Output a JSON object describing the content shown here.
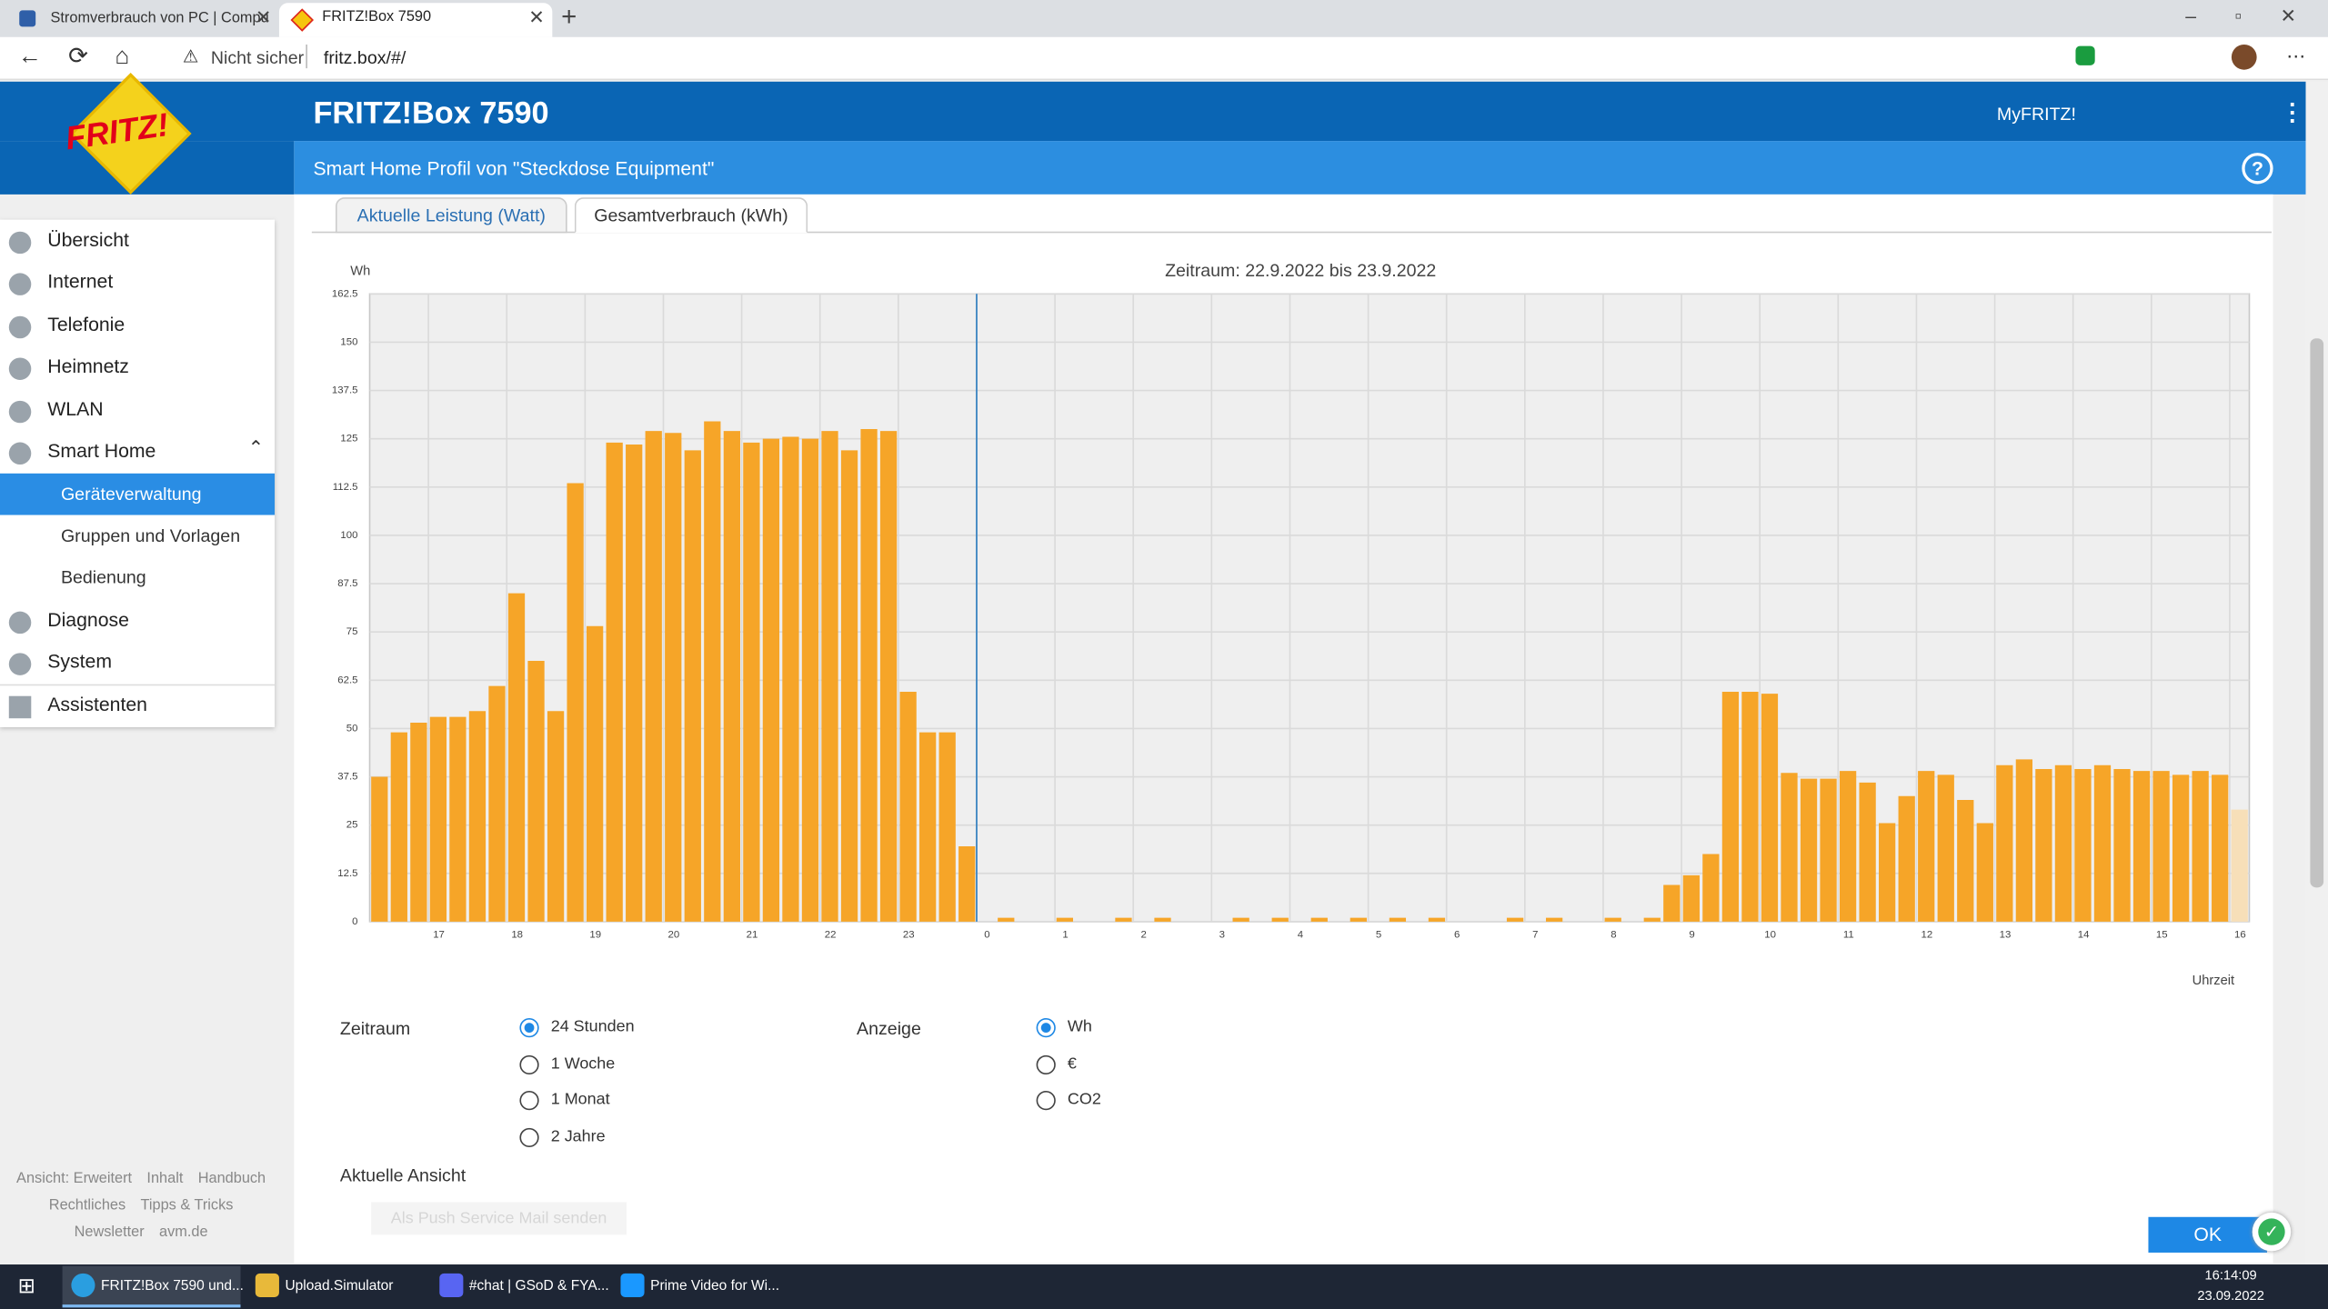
{
  "browser": {
    "tabs": [
      "Stromverbrauch von PC | Compu",
      "FRITZ!Box 7590"
    ],
    "security": "Nicht sicher",
    "url": "fritz.box/#/"
  },
  "header": {
    "logo": "FRITZ!",
    "title": "FRITZ!Box 7590",
    "myfritz": "MyFRITZ!",
    "subtitle": "Smart Home Profil von \"Steckdose Equipment\"",
    "help": "?"
  },
  "nav": {
    "items": [
      "Übersicht",
      "Internet",
      "Telefonie",
      "Heimnetz",
      "WLAN",
      "Smart Home"
    ],
    "subitems": [
      "Geräteverwaltung",
      "Gruppen und Vorlagen",
      "Bedienung"
    ],
    "selected_subitem": 0,
    "more": [
      "Diagnose",
      "System"
    ],
    "assistant": "Assistenten"
  },
  "footer_links": [
    [
      "Ansicht: Erweitert",
      "Inhalt",
      "Handbuch"
    ],
    [
      "Rechtliches",
      "Tipps & Tricks"
    ],
    [
      "Newsletter",
      "avm.de"
    ]
  ],
  "tabs": [
    "Aktuelle Leistung (Watt)",
    "Gesamtverbrauch (kWh)"
  ],
  "active_tab": 1,
  "chart_data": {
    "type": "bar",
    "title": "Zeitraum: 22.9.2022 bis 23.9.2022",
    "y_unit": "Wh",
    "x_label": "Uhrzeit",
    "x": [
      16.25,
      16.5,
      16.75,
      17,
      17.25,
      17.5,
      17.75,
      18,
      18.25,
      18.5,
      18.75,
      19,
      19.25,
      19.5,
      19.75,
      20,
      20.25,
      20.5,
      20.75,
      21,
      21.25,
      21.5,
      21.75,
      22,
      22.25,
      22.5,
      22.75,
      23,
      23.25,
      23.5,
      23.75,
      24,
      24.25,
      24.5,
      24.75,
      25,
      25.25,
      25.5,
      25.75,
      26,
      26.25,
      26.5,
      26.75,
      27,
      27.25,
      27.5,
      27.75,
      28,
      28.25,
      28.5,
      28.75,
      29,
      29.25,
      29.5,
      29.75,
      30,
      30.25,
      30.5,
      30.75,
      31,
      31.25,
      31.5,
      31.75,
      32,
      32.25,
      32.5,
      32.75,
      33,
      33.25,
      33.5,
      33.75,
      34,
      34.25,
      34.5,
      34.75,
      35,
      35.25,
      35.5,
      35.75,
      36,
      36.25,
      36.5,
      36.75,
      37,
      37.25,
      37.5,
      37.75,
      38,
      38.25,
      38.5,
      38.75,
      39,
      39.25,
      39.5,
      39.75,
      40
    ],
    "values": [
      37.5,
      49,
      51.5,
      53,
      53,
      54.5,
      61,
      85,
      67.5,
      54.5,
      113.5,
      76.5,
      124,
      123.5,
      127,
      126.5,
      122,
      129.5,
      127,
      124,
      125,
      125.5,
      125,
      127,
      122,
      127.5,
      127,
      59.5,
      49,
      49,
      19.5,
      0,
      1,
      0,
      0,
      1,
      0,
      0,
      1,
      0,
      1,
      0,
      0,
      0,
      1,
      0,
      1,
      0,
      1,
      0,
      1,
      0,
      1,
      0,
      1,
      0,
      0,
      0,
      1,
      0,
      1,
      0,
      0,
      1,
      0,
      1,
      9.5,
      12,
      17.5,
      59.5,
      59.5,
      59,
      38.5,
      37,
      37,
      39,
      36,
      25.5,
      32.5,
      39,
      38,
      31.5,
      25.5,
      40.5,
      42,
      39.5,
      40.5,
      39.5,
      40.5,
      39.5,
      39,
      39,
      38,
      39,
      38,
      29
    ],
    "color": "#f6a528",
    "current_color": "#f7dfb8",
    "xlim": [
      16.25,
      40.25
    ],
    "xticks": [
      17,
      18,
      19,
      20,
      21,
      22,
      23,
      {
        "value": 24,
        "label": "0"
      },
      {
        "value": 25,
        "label": "1"
      },
      {
        "value": 26,
        "label": "2"
      },
      {
        "value": 27,
        "label": "3"
      },
      {
        "value": 28,
        "label": "4"
      },
      {
        "value": 29,
        "label": "5"
      },
      {
        "value": 30,
        "label": "6"
      },
      {
        "value": 31,
        "label": "7"
      },
      {
        "value": 32,
        "label": "8"
      },
      {
        "value": 33,
        "label": "9"
      },
      {
        "value": 34,
        "label": "10"
      },
      {
        "value": 35,
        "label": "11"
      },
      {
        "value": 36,
        "label": "12"
      },
      {
        "value": 37,
        "label": "13"
      },
      {
        "value": 38,
        "label": "14"
      },
      {
        "value": 39,
        "label": "15"
      },
      {
        "value": 40,
        "label": "16"
      }
    ],
    "ylim": [
      0,
      162.5
    ],
    "yticks": [
      0,
      12.5,
      25,
      37.5,
      50,
      62.5,
      75,
      87.5,
      100,
      112.5,
      125,
      137.5,
      150,
      162.5
    ],
    "grid": true,
    "day_divider": 24
  },
  "settings": {
    "zeitraum": {
      "label": "Zeitraum",
      "options": [
        "24 Stunden",
        "1 Woche",
        "1 Monat",
        "2 Jahre"
      ],
      "selected": 0
    },
    "anzeige": {
      "label": "Anzeige",
      "options": [
        "Wh",
        "€",
        "CO2"
      ],
      "selected": 0
    },
    "view_label": "Aktuelle Ansicht",
    "push_button": "Als Push Service Mail senden",
    "ok": "OK"
  },
  "taskbar": {
    "items": [
      "FRITZ!Box 7590 und...",
      "Upload.Simulator",
      "#chat | GSoD & FYA...",
      "Prime Video for Wi..."
    ],
    "time": "16:14:09",
    "date": "23.09.2022"
  }
}
